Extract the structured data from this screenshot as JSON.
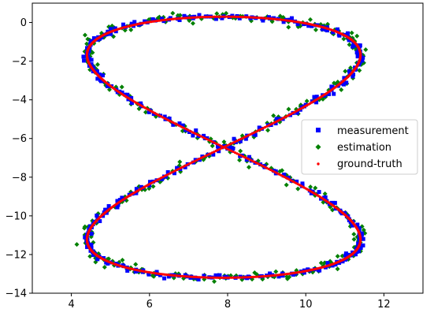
{
  "chart_data": {
    "type": "scatter",
    "title": "",
    "xlabel": "",
    "ylabel": "",
    "xlim": [
      3,
      13
    ],
    "ylim": [
      -14,
      1
    ],
    "x_ticks": [
      4,
      6,
      8,
      10,
      12
    ],
    "y_ticks": [
      0,
      -2,
      -4,
      -6,
      -8,
      -10,
      -12,
      -14
    ],
    "grid": false,
    "legend_position": "center-right",
    "curve": {
      "shape": "figure-eight",
      "center_x": 7.9,
      "center_y": -6.45,
      "amplitude_x": 3.5,
      "amplitude_y": 6.75,
      "points_per_loop": 900
    },
    "outlier": {
      "x": 4.35,
      "y": -0.65
    },
    "series": [
      {
        "name": "measurement",
        "marker": "square",
        "color": "#0000ff",
        "noise": 0.05
      },
      {
        "name": "estimation",
        "marker": "diamond",
        "color": "#008000",
        "noise": 0.09
      },
      {
        "name": "ground-truth",
        "marker": "dot",
        "color": "#ff0000",
        "noise": 0.0
      }
    ]
  }
}
